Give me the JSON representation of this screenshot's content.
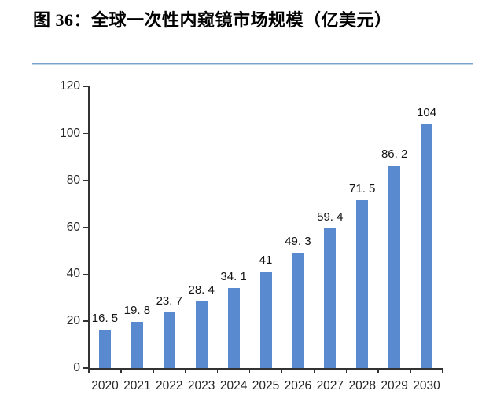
{
  "chart_data": {
    "type": "bar",
    "title": "图 36：全球一次性内窥镜市场规模（亿美元）",
    "categories": [
      "2020",
      "2021",
      "2022",
      "2023",
      "2024",
      "2025",
      "2026",
      "2027",
      "2028",
      "2029",
      "2030"
    ],
    "values": [
      16.5,
      19.8,
      23.7,
      28.4,
      34.1,
      41,
      49.3,
      59.4,
      71.5,
      86.2,
      104
    ],
    "value_labels": [
      "16. 5",
      "19. 8",
      "23. 7",
      "28. 4",
      "34. 1",
      "41",
      "49. 3",
      "59. 4",
      "71. 5",
      "86. 2",
      "104"
    ],
    "xlabel": "",
    "ylabel": "",
    "y_ticks": [
      0,
      20,
      40,
      60,
      80,
      100,
      120
    ],
    "ylim": [
      0,
      120
    ],
    "grid": false,
    "legend": null,
    "bar_color": "#5989CE",
    "axis_color": "#333333",
    "separator_color": "#7AA2CC",
    "text_color": "#262626"
  }
}
